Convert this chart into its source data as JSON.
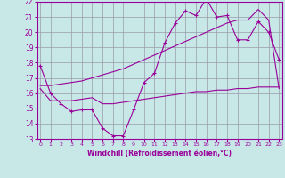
{
  "xlabel": "Windchill (Refroidissement éolien,°C)",
  "bg_color": "#c8e8e8",
  "line_color": "#990099",
  "grid_color": "#9999aa",
  "xmin": 0,
  "xmax": 23,
  "ymin": 13,
  "ymax": 22,
  "series1_x": [
    0,
    1,
    2,
    3,
    4,
    5,
    6,
    7,
    8,
    9,
    10,
    11,
    12,
    13,
    14,
    15,
    16,
    17,
    18,
    19,
    20,
    21,
    22,
    23
  ],
  "series1_y": [
    17.8,
    16.0,
    15.3,
    14.8,
    14.9,
    14.9,
    13.7,
    13.2,
    13.2,
    14.9,
    16.7,
    17.3,
    19.3,
    20.6,
    21.4,
    21.1,
    22.2,
    21.0,
    21.1,
    19.5,
    19.5,
    20.7,
    20.0,
    18.2
  ],
  "series2_x": [
    0,
    1,
    2,
    3,
    4,
    5,
    6,
    7,
    8,
    9,
    10,
    11,
    12,
    13,
    14,
    15,
    16,
    17,
    18,
    19,
    20,
    21,
    22,
    23
  ],
  "series2_y": [
    16.5,
    16.5,
    16.6,
    16.7,
    16.8,
    17.0,
    17.2,
    17.4,
    17.6,
    17.9,
    18.2,
    18.5,
    18.8,
    19.1,
    19.4,
    19.7,
    20.0,
    20.3,
    20.6,
    20.8,
    20.8,
    21.5,
    20.8,
    16.3
  ],
  "series3_x": [
    0,
    1,
    2,
    3,
    4,
    5,
    6,
    7,
    8,
    9,
    10,
    11,
    12,
    13,
    14,
    15,
    16,
    17,
    18,
    19,
    20,
    21,
    22,
    23
  ],
  "series3_y": [
    16.3,
    15.5,
    15.5,
    15.5,
    15.6,
    15.7,
    15.3,
    15.3,
    15.4,
    15.5,
    15.6,
    15.7,
    15.8,
    15.9,
    16.0,
    16.1,
    16.1,
    16.2,
    16.2,
    16.3,
    16.3,
    16.4,
    16.4,
    16.4
  ]
}
